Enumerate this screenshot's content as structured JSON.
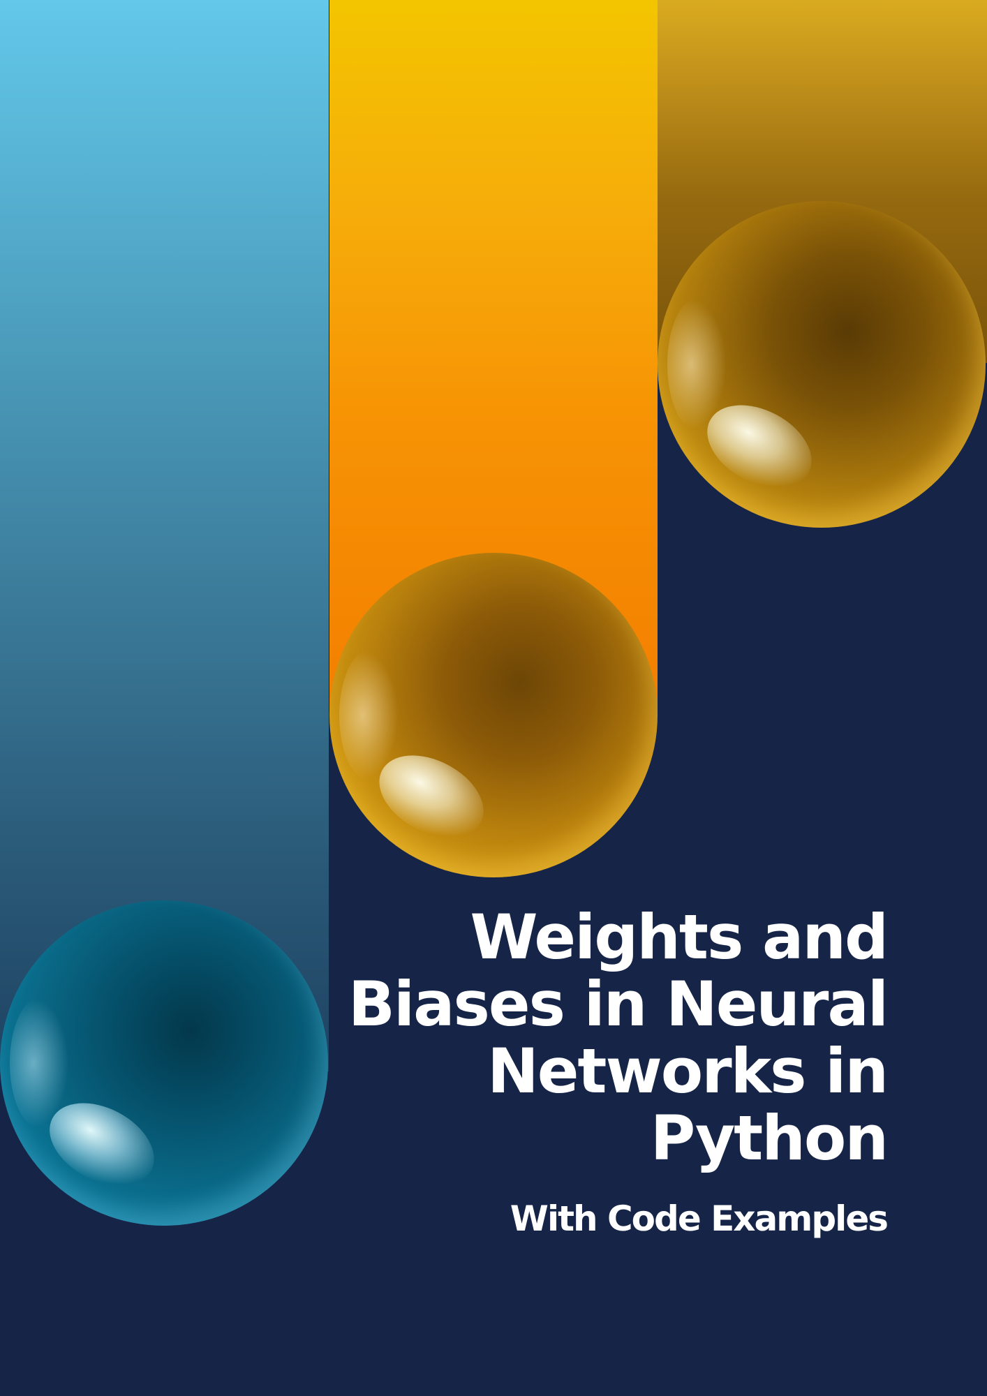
{
  "cover": {
    "title": "Weights and Biases in Neural Networks in Python",
    "subtitle": "With Code Examples"
  },
  "colors": {
    "background": "#162447",
    "blue_column": "#4d9fbf",
    "orange_column": "#f79204",
    "gold_column": "#bd8d1a",
    "text": "#ffffff"
  }
}
